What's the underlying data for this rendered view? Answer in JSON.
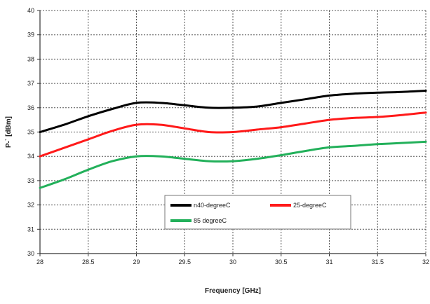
{
  "chart_data": {
    "type": "line",
    "xlabel": "Frequency  [GHz]",
    "ylabel": "P-` [dBm]",
    "x_tick_labels": [
      "28",
      "28.5",
      "29",
      "29.5",
      "30",
      "30.5",
      "31",
      "31.5",
      "32"
    ],
    "y_tick_labels": [
      "30",
      "31",
      "32",
      "33",
      "34",
      "35",
      "36",
      "37",
      "38",
      "39",
      "40"
    ],
    "xlim": [
      28,
      32
    ],
    "ylim": [
      30,
      40
    ],
    "grid": true,
    "legend_position": "lower-middle",
    "series": [
      {
        "name": "n40-degreeC",
        "color": "#000000",
        "x": [
          28,
          28.25,
          28.5,
          28.75,
          29,
          29.25,
          29.5,
          29.75,
          30,
          30.25,
          30.5,
          30.75,
          31,
          31.25,
          31.5,
          31.75,
          32
        ],
        "y": [
          35.0,
          35.3,
          35.65,
          35.95,
          36.2,
          36.2,
          36.1,
          36.0,
          36.0,
          36.05,
          36.2,
          36.35,
          36.5,
          36.58,
          36.62,
          36.65,
          36.7
        ]
      },
      {
        "name": "25-degreeC",
        "color": "#ff1a1a",
        "x": [
          28,
          28.25,
          28.5,
          28.75,
          29,
          29.25,
          29.5,
          29.75,
          30,
          30.25,
          30.5,
          30.75,
          31,
          31.25,
          31.5,
          31.75,
          32
        ],
        "y": [
          34.0,
          34.35,
          34.7,
          35.05,
          35.3,
          35.3,
          35.15,
          35.0,
          35.0,
          35.1,
          35.2,
          35.35,
          35.5,
          35.58,
          35.62,
          35.7,
          35.8
        ]
      },
      {
        "name": "85 degreeC",
        "color": "#22b05a",
        "x": [
          28,
          28.25,
          28.5,
          28.75,
          29,
          29.25,
          29.5,
          29.75,
          30,
          30.25,
          30.5,
          30.75,
          31,
          31.25,
          31.5,
          31.75,
          32
        ],
        "y": [
          32.7,
          33.05,
          33.45,
          33.8,
          34.0,
          34.0,
          33.9,
          33.8,
          33.8,
          33.9,
          34.05,
          34.22,
          34.37,
          34.43,
          34.5,
          34.55,
          34.6
        ]
      }
    ]
  }
}
